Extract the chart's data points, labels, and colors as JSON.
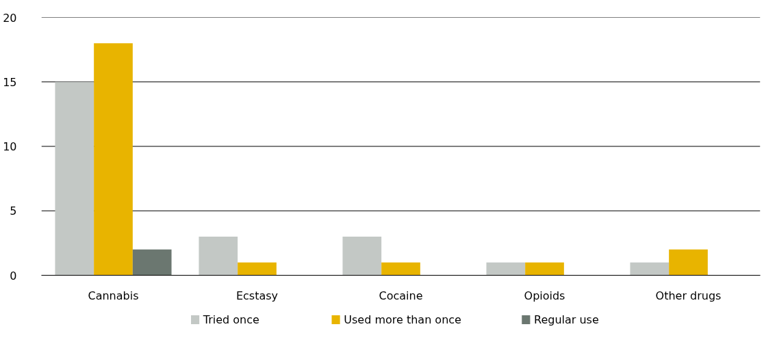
{
  "chart_data": {
    "type": "bar",
    "categories": [
      "Cannabis",
      "Ecstasy",
      "Cocaine",
      "Opioids",
      "Other drugs"
    ],
    "series": [
      {
        "name": "Tried once",
        "color": "#c3c8c5",
        "values": [
          15,
          3,
          3,
          1,
          1
        ]
      },
      {
        "name": "Used more than once",
        "color": "#e8b400",
        "values": [
          18,
          1,
          1,
          1,
          2
        ]
      },
      {
        "name": "Regular use",
        "color": "#6b7770",
        "values": [
          2,
          0,
          0,
          0,
          0
        ]
      }
    ],
    "ylim": [
      0,
      20
    ],
    "yticks": [
      0,
      5,
      10,
      15,
      20
    ],
    "grid": "y",
    "legend": "bottom"
  }
}
